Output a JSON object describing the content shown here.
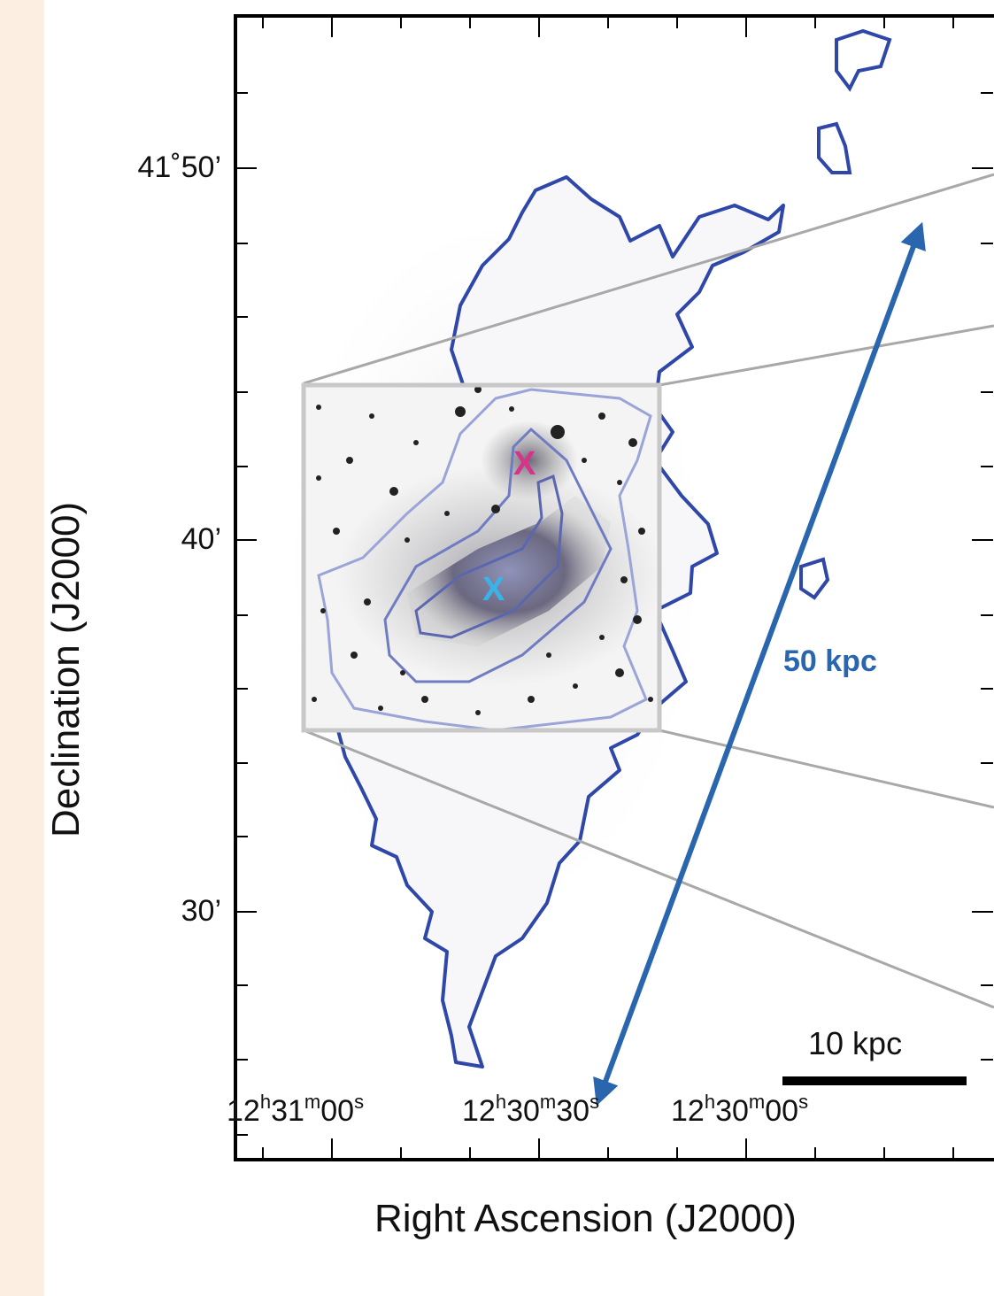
{
  "figure": {
    "y_axis_label": "Declination (J2000)",
    "x_axis_label": "Right Ascension (J2000)",
    "y_ticks": [
      "41˚50’",
      "40’",
      "30’"
    ],
    "x_ticks": [
      {
        "h": "12",
        "hs": "h",
        "m": "31",
        "ms": "m",
        "s": "00",
        "ss": "s"
      },
      {
        "h": "12",
        "hs": "h",
        "m": "30",
        "ms": "m",
        "s": "30",
        "ss": "s"
      },
      {
        "h": "12",
        "hs": "h",
        "m": "30",
        "ms": "m",
        "s": "00",
        "ss": "s"
      }
    ],
    "scale_bar_label": "10 kpc",
    "arrow_label": "50 kpc",
    "marker_pink": "X",
    "marker_cyan": "X"
  },
  "colors": {
    "contour": "#2e47a8",
    "arrow": "#2a66ad",
    "marker_pink": "#d6338a",
    "marker_cyan": "#3bb3e8",
    "inset_frame": "#c8c8c8",
    "background_tint": "#fdeee2"
  }
}
